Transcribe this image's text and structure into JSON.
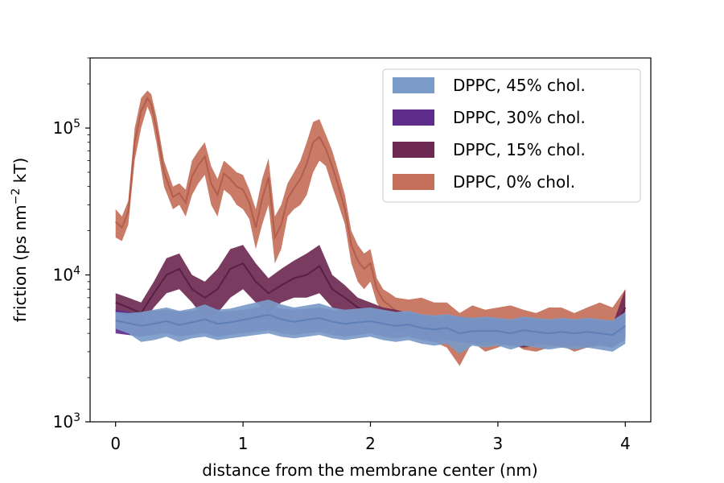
{
  "chart_data": {
    "type": "area",
    "xlabel": "distance from the membrane center (nm)",
    "ylabel_main": "friction (ps nm",
    "ylabel_sup": "−2",
    "ylabel_end": " kT)",
    "x_ticks": [
      0,
      1,
      2,
      3,
      4
    ],
    "x_tick_labels": [
      "0",
      "1",
      "2",
      "3",
      "4"
    ],
    "xlim": [
      -0.2,
      4.2
    ],
    "yscale": "log",
    "ylim": [
      1000,
      300000
    ],
    "y_ticks": [
      {
        "value": 1000,
        "base": "10",
        "exp": "3"
      },
      {
        "value": 10000,
        "base": "10",
        "exp": "4"
      },
      {
        "value": 100000,
        "base": "10",
        "exp": "5"
      }
    ],
    "legend_position": "top-right",
    "series": [
      {
        "name": "DPPC, 0% chol.",
        "fill": "#c4705a",
        "line": "#b25e4c",
        "x": [
          0.0,
          0.05,
          0.1,
          0.15,
          0.2,
          0.25,
          0.28,
          0.32,
          0.38,
          0.45,
          0.5,
          0.55,
          0.6,
          0.65,
          0.7,
          0.75,
          0.8,
          0.85,
          0.9,
          0.95,
          1.0,
          1.05,
          1.1,
          1.15,
          1.2,
          1.25,
          1.3,
          1.35,
          1.4,
          1.45,
          1.5,
          1.55,
          1.6,
          1.65,
          1.7,
          1.75,
          1.8,
          1.85,
          1.9,
          1.95,
          2.0,
          2.05,
          2.1,
          2.15,
          2.2,
          2.3,
          2.4,
          2.5,
          2.6,
          2.7,
          2.8,
          2.9,
          3.0,
          3.1,
          3.2,
          3.3,
          3.4,
          3.5,
          3.6,
          3.7,
          3.8,
          3.9,
          4.0
        ],
        "lower": [
          18000,
          17000,
          22000,
          60000,
          100000,
          140000,
          120000,
          80000,
          40000,
          28000,
          30000,
          25000,
          35000,
          42000,
          48000,
          30000,
          25000,
          38000,
          35000,
          30000,
          28000,
          24000,
          15000,
          22000,
          30000,
          12000,
          15000,
          25000,
          28000,
          30000,
          35000,
          50000,
          60000,
          55000,
          40000,
          30000,
          22000,
          12000,
          9000,
          8000,
          9000,
          6500,
          5500,
          5000,
          4500,
          4200,
          3800,
          3500,
          3200,
          2400,
          3500,
          3000,
          3200,
          3500,
          3100,
          3000,
          3200,
          3300,
          3000,
          3200,
          3400,
          3200,
          4000
        ],
        "upper": [
          28000,
          25000,
          32000,
          100000,
          160000,
          180000,
          170000,
          120000,
          60000,
          40000,
          42000,
          38000,
          60000,
          70000,
          80000,
          55000,
          45000,
          60000,
          55000,
          50000,
          48000,
          38000,
          28000,
          45000,
          62000,
          25000,
          30000,
          42000,
          50000,
          60000,
          80000,
          110000,
          115000,
          90000,
          70000,
          50000,
          35000,
          20000,
          16000,
          14000,
          15000,
          9500,
          8000,
          7500,
          7000,
          6800,
          7000,
          6500,
          6500,
          5500,
          6200,
          5800,
          6000,
          6200,
          5800,
          5500,
          6000,
          6000,
          5500,
          6000,
          6500,
          6000,
          8000
        ],
        "mid": [
          23000,
          21000,
          27000,
          80000,
          130000,
          160000,
          145000,
          100000,
          50000,
          34000,
          36000,
          31000,
          47000,
          56000,
          64000,
          42000,
          35000,
          49000,
          45000,
          40000,
          38000,
          31000,
          21000,
          33000,
          46000,
          18000,
          22000,
          33000,
          39000,
          45000,
          57000,
          80000,
          87000,
          72000,
          55000,
          40000,
          28000,
          16000,
          12500,
          11000,
          12000,
          8000,
          6700,
          6200,
          5700,
          5300,
          5200,
          4800,
          4600,
          3800,
          4700,
          4200,
          4500,
          4700,
          4300,
          4100,
          4500,
          4500,
          4200,
          4500,
          4800,
          4500,
          6000
        ]
      },
      {
        "name": "DPPC, 15% chol.",
        "fill": "#6e2a53",
        "line": "#5a1f44",
        "x": [
          0.0,
          0.1,
          0.2,
          0.3,
          0.4,
          0.5,
          0.6,
          0.7,
          0.8,
          0.9,
          1.0,
          1.1,
          1.2,
          1.3,
          1.4,
          1.5,
          1.6,
          1.7,
          1.8,
          1.9,
          2.0,
          2.1,
          2.2,
          2.3,
          2.4,
          2.5,
          2.6,
          2.7,
          2.8,
          2.9,
          3.0,
          3.1,
          3.2,
          3.3,
          3.4,
          3.5,
          3.6,
          3.7,
          3.8,
          3.9,
          4.0
        ],
        "lower": [
          5500,
          5000,
          4500,
          6000,
          7500,
          8000,
          6500,
          5000,
          5500,
          7000,
          8000,
          6500,
          5500,
          6500,
          7000,
          7000,
          7500,
          6000,
          5500,
          5000,
          4800,
          4500,
          4200,
          4000,
          3800,
          3700,
          3600,
          3500,
          3400,
          3300,
          3400,
          3300,
          3200,
          3300,
          3400,
          3200,
          3300,
          3200,
          3300,
          3200,
          3800
        ],
        "upper": [
          7500,
          7000,
          6500,
          9000,
          13000,
          14000,
          10000,
          9000,
          11000,
          15000,
          16000,
          12000,
          9500,
          11000,
          12500,
          14000,
          16000,
          10000,
          8500,
          7000,
          6500,
          6000,
          5800,
          5500,
          5300,
          5200,
          5200,
          5000,
          4800,
          4700,
          4900,
          4800,
          4600,
          4800,
          4900,
          4600,
          4700,
          4600,
          4700,
          4600,
          8000
        ],
        "mid": [
          6500,
          6000,
          5500,
          7500,
          10000,
          11000,
          8000,
          7000,
          8000,
          11000,
          12000,
          9000,
          7500,
          8500,
          9500,
          10000,
          11500,
          8000,
          7000,
          6000,
          5600,
          5200,
          5000,
          4700,
          4500,
          4400,
          4400,
          4200,
          4100,
          4000,
          4100,
          4000,
          3900,
          4000,
          4100,
          3900,
          4000,
          3900,
          4000,
          3900,
          6000
        ]
      },
      {
        "name": "DPPC, 30% chol.",
        "fill": "#5e2d8c",
        "line": "#4a1f78",
        "x": [
          0.0,
          0.1,
          0.2,
          0.3,
          0.4,
          0.5,
          0.6,
          0.7,
          0.8,
          0.9,
          1.0,
          1.1,
          1.2,
          1.3,
          1.4,
          1.5,
          1.6,
          1.7,
          1.8,
          1.9,
          2.0,
          2.1,
          2.2,
          2.3,
          2.4,
          2.5,
          2.6,
          2.7,
          2.8,
          2.9,
          3.0,
          3.1,
          3.2,
          3.3,
          3.4,
          3.5,
          3.6,
          3.7,
          3.8,
          3.9,
          4.0
        ],
        "lower": [
          4000,
          3900,
          3800,
          3900,
          4000,
          3800,
          3900,
          4000,
          3800,
          3900,
          4000,
          4100,
          4200,
          4000,
          3900,
          4000,
          4100,
          3900,
          3800,
          3900,
          4000,
          3800,
          3700,
          3800,
          3600,
          3500,
          3600,
          3500,
          3400,
          3500,
          3400,
          3300,
          3500,
          3400,
          3300,
          3400,
          3300,
          3400,
          3300,
          3200,
          3600
        ],
        "upper": [
          5800,
          5600,
          5500,
          5700,
          5800,
          5600,
          5700,
          5900,
          5600,
          5700,
          5800,
          6000,
          6100,
          5900,
          5800,
          5900,
          6000,
          5800,
          5600,
          5700,
          5800,
          5600,
          5400,
          5500,
          5300,
          5200,
          5300,
          5200,
          5000,
          5100,
          5000,
          4900,
          5100,
          5000,
          4900,
          5000,
          4900,
          5000,
          4900,
          4800,
          5500
        ],
        "mid": [
          4800,
          4700,
          4600,
          4750,
          4850,
          4650,
          4750,
          4900,
          4650,
          4750,
          4850,
          5000,
          5100,
          4900,
          4800,
          4900,
          5000,
          4800,
          4650,
          4750,
          4850,
          4650,
          4500,
          4600,
          4400,
          4300,
          4400,
          4300,
          4150,
          4250,
          4150,
          4050,
          4250,
          4150,
          4050,
          4150,
          4050,
          4150,
          4050,
          3950,
          4500
        ]
      },
      {
        "name": "DPPC, 45% chol.",
        "fill": "#7a9ac8",
        "line": "#6080b8",
        "x": [
          0.0,
          0.1,
          0.2,
          0.3,
          0.4,
          0.5,
          0.6,
          0.7,
          0.8,
          0.9,
          1.0,
          1.1,
          1.2,
          1.3,
          1.4,
          1.5,
          1.6,
          1.7,
          1.8,
          1.9,
          2.0,
          2.1,
          2.2,
          2.3,
          2.4,
          2.5,
          2.6,
          2.7,
          2.8,
          2.9,
          3.0,
          3.1,
          3.2,
          3.3,
          3.4,
          3.5,
          3.6,
          3.7,
          3.8,
          3.9,
          4.0
        ],
        "lower": [
          4300,
          4000,
          3500,
          3600,
          3800,
          3500,
          3700,
          3800,
          3600,
          3700,
          3800,
          3900,
          4000,
          3800,
          3700,
          3800,
          3900,
          3700,
          3600,
          3700,
          3800,
          3600,
          3500,
          3600,
          3400,
          3300,
          3400,
          2900,
          3300,
          3200,
          3300,
          3100,
          3300,
          3200,
          3100,
          3200,
          3100,
          3200,
          3100,
          3000,
          3400
        ],
        "upper": [
          5600,
          5500,
          5600,
          5800,
          6000,
          5700,
          5900,
          6300,
          5800,
          5900,
          6200,
          6500,
          6800,
          6300,
          6000,
          6200,
          6400,
          6000,
          5800,
          5900,
          6000,
          5800,
          5600,
          5700,
          5400,
          5300,
          5400,
          5200,
          5100,
          5200,
          5100,
          5000,
          5200,
          5100,
          5000,
          5100,
          5000,
          5100,
          5000,
          4900,
          5600
        ],
        "mid": [
          4900,
          4700,
          4500,
          4650,
          4850,
          4550,
          4750,
          5000,
          4650,
          4750,
          4950,
          5150,
          5350,
          5000,
          4800,
          4950,
          5100,
          4800,
          4650,
          4750,
          4850,
          4650,
          4500,
          4600,
          4350,
          4250,
          4350,
          4000,
          4150,
          4150,
          4150,
          4000,
          4200,
          4100,
          4000,
          4100,
          4000,
          4100,
          4000,
          3900,
          4500
        ]
      }
    ],
    "legend_order": [
      "DPPC, 45% chol.",
      "DPPC, 30% chol.",
      "DPPC, 15% chol.",
      "DPPC, 0% chol."
    ]
  }
}
